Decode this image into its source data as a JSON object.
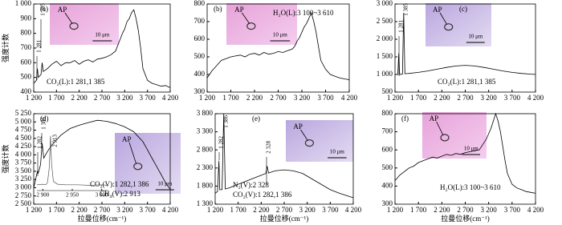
{
  "chart_data": [
    {
      "type": "line",
      "panel_label": "(a)",
      "y_label": "强度计数",
      "xlim": [
        1200,
        4200
      ],
      "xticks": [
        {
          "value": 1200,
          "label": "1 200"
        },
        {
          "value": 1700,
          "label": "1 700"
        },
        {
          "value": 2200,
          "label": "2 200"
        },
        {
          "value": 2700,
          "label": "2 700"
        },
        {
          "value": 3200,
          "label": "3 200"
        },
        {
          "value": 3700,
          "label": "3 700"
        },
        {
          "value": 4200,
          "label": "4 200"
        }
      ],
      "ylim": [
        400,
        1000
      ],
      "yticks": [
        400,
        500,
        600,
        700,
        800,
        900,
        {
          "value": 1000,
          "label": "1 000"
        }
      ],
      "series": [
        {
          "color": "#000000",
          "x": [
            1200,
            1260,
            1281,
            1300,
            1360,
            1385,
            1410,
            1500,
            1600,
            1700,
            1800,
            1900,
            2000,
            2100,
            2200,
            2300,
            2400,
            2500,
            2600,
            2700,
            2800,
            2900,
            3000,
            3050,
            3100,
            3150,
            3200,
            3250,
            3300,
            3350,
            3400,
            3450,
            3500,
            3550,
            3600,
            3700,
            3800,
            3900,
            4000,
            4100,
            4200
          ],
          "values": [
            460,
            480,
            560,
            500,
            520,
            600,
            540,
            560,
            590,
            610,
            580,
            600,
            600,
            615,
            590,
            610,
            620,
            605,
            625,
            630,
            640,
            655,
            680,
            720,
            760,
            800,
            830,
            880,
            900,
            940,
            960,
            900,
            820,
            700,
            560,
            480,
            460,
            450,
            440,
            445,
            430
          ]
        }
      ],
      "peak_labels": [
        "1 385",
        "1 281"
      ],
      "assignments": [
        "CO₂(L):1 281,1 385"
      ],
      "photo": {
        "particle": "AP",
        "scale": "10 μm"
      }
    },
    {
      "type": "line",
      "panel_label": "(b)",
      "xlim": [
        1200,
        4200
      ],
      "xticks": [
        {
          "value": 1200,
          "label": "1 200"
        },
        {
          "value": 1700,
          "label": "1 700"
        },
        {
          "value": 2200,
          "label": "2 200"
        },
        {
          "value": 2700,
          "label": "2 700"
        },
        {
          "value": 3200,
          "label": "3 200"
        },
        {
          "value": 3700,
          "label": "3 700"
        },
        {
          "value": 4200,
          "label": "4 200"
        }
      ],
      "ylim": [
        300,
        800
      ],
      "yticks": [
        300,
        400,
        500,
        600,
        700,
        800
      ],
      "series": [
        {
          "color": "#000000",
          "x": [
            1200,
            1300,
            1400,
            1500,
            1600,
            1700,
            1800,
            1900,
            2000,
            2100,
            2200,
            2300,
            2400,
            2500,
            2600,
            2700,
            2800,
            2900,
            3000,
            3050,
            3100,
            3150,
            3200,
            3250,
            3300,
            3350,
            3400,
            3450,
            3500,
            3550,
            3600,
            3700,
            3800,
            3900,
            4000,
            4100,
            4200
          ],
          "values": [
            380,
            420,
            450,
            480,
            490,
            500,
            505,
            510,
            500,
            515,
            520,
            510,
            525,
            515,
            520,
            530,
            525,
            535,
            545,
            560,
            590,
            610,
            640,
            670,
            690,
            720,
            750,
            700,
            640,
            560,
            480,
            430,
            400,
            390,
            380,
            375,
            370
          ]
        }
      ],
      "peak_labels": [],
      "assignments": [
        "H₂O(L):3 100~3 610"
      ],
      "photo": {
        "particle": "AP",
        "scale": "10 μm"
      }
    },
    {
      "type": "line",
      "panel_label": "(c)",
      "xlim": [
        1200,
        4200
      ],
      "xticks": [
        {
          "value": 1200,
          "label": "1 200"
        },
        {
          "value": 1700,
          "label": "1 700"
        },
        {
          "value": 2200,
          "label": "2 200"
        },
        {
          "value": 2700,
          "label": "2 700"
        },
        {
          "value": 3200,
          "label": "3 200"
        },
        {
          "value": 3700,
          "label": "3 700"
        },
        {
          "value": 4200,
          "label": "4 200"
        }
      ],
      "ylim": [
        500,
        3000
      ],
      "yticks": [
        500,
        {
          "value": 1000,
          "label": "1 000"
        },
        {
          "value": 1500,
          "label": "1 500"
        },
        {
          "value": 2000,
          "label": "2 000"
        },
        {
          "value": 2500,
          "label": "2 500"
        },
        {
          "value": 3000,
          "label": "3 000"
        }
      ],
      "series": [
        {
          "color": "#000000",
          "x": [
            1200,
            1260,
            1281,
            1300,
            1360,
            1385,
            1410,
            1500,
            1700,
            1900,
            2100,
            2300,
            2500,
            2700,
            2900,
            3100,
            3300,
            3500,
            3700,
            3900,
            4100,
            4200
          ],
          "values": [
            1000,
            1000,
            1600,
            1000,
            1010,
            2750,
            1020,
            1030,
            1060,
            1100,
            1150,
            1200,
            1240,
            1260,
            1240,
            1200,
            1150,
            1100,
            1060,
            1030,
            1010,
            1000
          ]
        }
      ],
      "peak_labels": [
        "1 385",
        "1 281"
      ],
      "assignments": [
        "CO₂(L):1 281,1 385"
      ],
      "photo": {
        "particle": "AP",
        "scale": "10 μm"
      }
    },
    {
      "type": "line",
      "panel_label": "(d)",
      "y_label": "强度计数",
      "x_label": "拉曼位移(cm⁻¹)",
      "xlim": [
        1200,
        4200
      ],
      "xticks": [
        {
          "value": 1200,
          "label": "1 200"
        },
        {
          "value": 1700,
          "label": "1 700"
        },
        {
          "value": 2200,
          "label": "2 200"
        },
        {
          "value": 2700,
          "label": "2 700"
        },
        {
          "value": 3200,
          "label": "3 200"
        },
        {
          "value": 3700,
          "label": "3 700"
        },
        {
          "value": 4200,
          "label": "4 200"
        }
      ],
      "ylim": [
        2500,
        5250
      ],
      "yticks": [
        {
          "value": 2500,
          "label": "2 500"
        },
        {
          "value": 2750,
          "label": "2 750"
        },
        {
          "value": 3000,
          "label": "3 000"
        },
        {
          "value": 3250,
          "label": "3 250"
        },
        {
          "value": 3500,
          "label": "3 500"
        },
        {
          "value": 3750,
          "label": "3 750"
        },
        {
          "value": 4000,
          "label": "4 000"
        },
        {
          "value": 4250,
          "label": "4 250"
        },
        {
          "value": 4500,
          "label": "4 500"
        },
        {
          "value": 4750,
          "label": "4 750"
        },
        {
          "value": 5000,
          "label": "5 000"
        },
        {
          "value": 5250,
          "label": "5 250"
        }
      ],
      "series": [
        {
          "color": "#000000",
          "x": [
            1200,
            1250,
            1282,
            1300,
            1350,
            1386,
            1420,
            1500,
            1600,
            1700,
            1800,
            1900,
            2000,
            2200,
            2400,
            2600,
            2800,
            3000,
            3200,
            3400,
            3500,
            3600,
            3700,
            3800,
            3900,
            4000,
            4100,
            4200
          ],
          "values": [
            3000,
            3300,
            3500,
            3450,
            3700,
            4350,
            3900,
            4100,
            4300,
            4450,
            4600,
            4700,
            4800,
            4900,
            4980,
            5050,
            5020,
            4950,
            4850,
            4700,
            4550,
            4400,
            4150,
            3900,
            3650,
            3400,
            3150,
            2950
          ]
        }
      ],
      "peak_labels": [
        "1 386",
        "1 282"
      ],
      "assignments": [
        "CO₂(V):1 282,1 386",
        "CH₄(V):2 913"
      ],
      "inset": {
        "xlim": [
          2890,
          3010
        ],
        "ylim": [
          0,
          100
        ],
        "xticks": [
          {
            "value": 2900,
            "label": "2 900"
          },
          {
            "value": 2950,
            "label": "2 950"
          },
          {
            "value": 3000,
            "label": "3 000"
          }
        ],
        "x": [
          2890,
          2900,
          2905,
          2908,
          2911,
          2913,
          2915,
          2918,
          2925,
          2940,
          2960,
          2980,
          3000,
          3010
        ],
        "values": [
          10,
          11,
          10,
          14,
          40,
          95,
          45,
          16,
          11,
          10,
          10,
          9,
          10,
          9
        ],
        "peak_label": "2 913"
      },
      "photo": {
        "particle": "AP",
        "scale": "10 μm"
      }
    },
    {
      "type": "line",
      "panel_label": "(e)",
      "x_label": "拉曼位移(cm⁻¹)",
      "xlim": [
        1200,
        4200
      ],
      "xticks": [
        {
          "value": 1200,
          "label": "1 200"
        },
        {
          "value": 1700,
          "label": "1 700"
        },
        {
          "value": 2200,
          "label": "2 200"
        },
        {
          "value": 2700,
          "label": "2 700"
        },
        {
          "value": 3200,
          "label": "3 200"
        },
        {
          "value": 3700,
          "label": "3 700"
        },
        {
          "value": 4200,
          "label": "4 200"
        }
      ],
      "ylim": [
        1300,
        3800
      ],
      "yticks": [
        {
          "value": 1300,
          "label": "1 300"
        },
        {
          "value": 1800,
          "label": "1 800"
        },
        {
          "value": 2300,
          "label": "2 300"
        },
        {
          "value": 2800,
          "label": "2 800"
        },
        {
          "value": 3300,
          "label": "3 300"
        },
        {
          "value": 3800,
          "label": "3 800"
        }
      ],
      "series": [
        {
          "color": "#000000",
          "x": [
            1200,
            1250,
            1282,
            1300,
            1350,
            1386,
            1420,
            1500,
            1700,
            1900,
            2100,
            2300,
            2328,
            2360,
            2500,
            2700,
            2900,
            3100,
            3300,
            3500,
            3700,
            3900,
            4100,
            4200
          ],
          "values": [
            1600,
            1650,
            2500,
            1700,
            1700,
            3800,
            1720,
            1750,
            1850,
            1950,
            2050,
            2150,
            2350,
            2160,
            2220,
            2250,
            2220,
            2150,
            2000,
            1850,
            1700,
            1600,
            1520,
            1480
          ]
        }
      ],
      "peak_labels": [
        "1 386",
        "1 282",
        "2 328"
      ],
      "assignments": [
        "N₂(V):2 328",
        "CO₂(V):1 282,1 386"
      ],
      "photo": {
        "particle": "AP",
        "scale": "10 μm"
      }
    },
    {
      "type": "line",
      "panel_label": "(f)",
      "x_label": "拉曼位移(cm⁻¹)",
      "xlim": [
        1200,
        4200
      ],
      "xticks": [
        {
          "value": 1200,
          "label": "1 200"
        },
        {
          "value": 1700,
          "label": "1 700"
        },
        {
          "value": 2200,
          "label": "2 200"
        },
        {
          "value": 2700,
          "label": "2 700"
        },
        {
          "value": 3200,
          "label": "3 200"
        },
        {
          "value": 3700,
          "label": "3 700"
        },
        {
          "value": 4200,
          "label": "4 200"
        }
      ],
      "ylim": [
        300,
        800
      ],
      "yticks": [
        300,
        400,
        500,
        600,
        700,
        800
      ],
      "series": [
        {
          "color": "#000000",
          "x": [
            1200,
            1300,
            1400,
            1500,
            1600,
            1700,
            1800,
            1900,
            2000,
            2100,
            2200,
            2300,
            2400,
            2500,
            2600,
            2700,
            2800,
            2900,
            3000,
            3050,
            3100,
            3150,
            3200,
            3250,
            3300,
            3350,
            3400,
            3450,
            3500,
            3550,
            3600,
            3700,
            3800,
            3900,
            4000,
            4100,
            4200
          ],
          "values": [
            430,
            460,
            480,
            500,
            510,
            530,
            540,
            550,
            560,
            555,
            565,
            575,
            570,
            580,
            575,
            585,
            590,
            595,
            600,
            620,
            640,
            660,
            690,
            720,
            760,
            800,
            760,
            700,
            620,
            540,
            470,
            410,
            390,
            380,
            370,
            365,
            360
          ]
        }
      ],
      "peak_labels": [],
      "assignments": [
        "H₂O(L):3 100~3 610"
      ],
      "photo": {
        "particle": "AP",
        "scale": "10 μm"
      }
    }
  ]
}
